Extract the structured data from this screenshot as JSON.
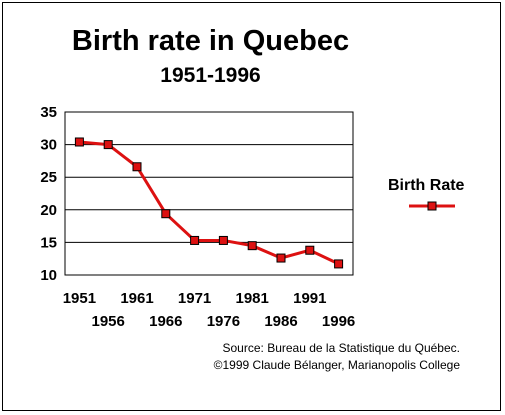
{
  "chart_data": {
    "type": "line",
    "title": "Birth rate in Quebec",
    "subtitle": "1951-1996",
    "xlabel": "",
    "ylabel": "",
    "categories": [
      "1951",
      "1956",
      "1961",
      "1966",
      "1971",
      "1976",
      "1981",
      "1986",
      "1991",
      "1996"
    ],
    "series": [
      {
        "name": "Birth Rate",
        "values": [
          30.4,
          30.0,
          26.6,
          19.4,
          15.3,
          15.3,
          14.5,
          12.6,
          13.8,
          11.7
        ],
        "color": "#dd1111"
      }
    ],
    "ylim": [
      10,
      35
    ],
    "yticks": [
      "10",
      "15",
      "20",
      "25",
      "30",
      "35"
    ],
    "grid": true,
    "legend": "right"
  },
  "source": {
    "line1": "Source: Bureau de la Statistique du Québec.",
    "line2": "©1999 Claude Bélanger, Marianopolis College"
  }
}
